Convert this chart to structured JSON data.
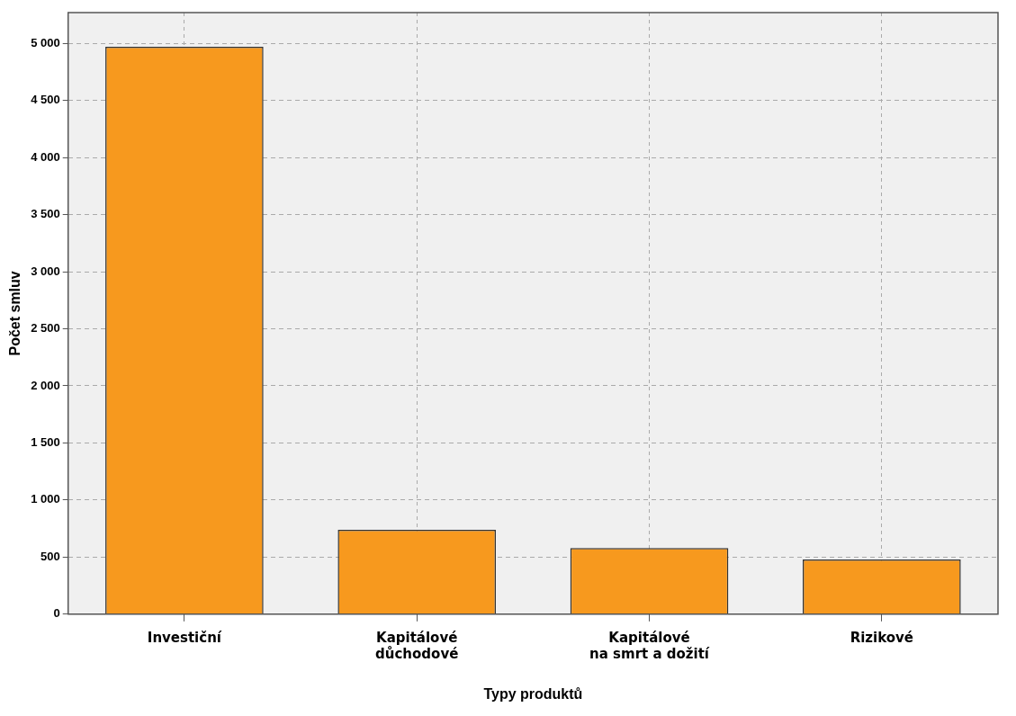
{
  "chart_data": {
    "type": "bar",
    "xlabel": "Typy produktů",
    "ylabel": "Počet smluv",
    "categories": [
      "Investiční",
      "Kapitálové\ndůchodové",
      "Kapitálové\nna smrt a dožití",
      "Rizikové"
    ],
    "values": [
      4970,
      740,
      580,
      480
    ],
    "color": "#f7991e",
    "ylim": [
      0,
      5270
    ],
    "yticks": [
      {
        "value": 0,
        "label": "0"
      },
      {
        "value": 500,
        "label": "500"
      },
      {
        "value": 1000,
        "label": "1 000"
      },
      {
        "value": 1500,
        "label": "1 500"
      },
      {
        "value": 2000,
        "label": "2 000"
      },
      {
        "value": 2500,
        "label": "2 500"
      },
      {
        "value": 3000,
        "label": "3 000"
      },
      {
        "value": 3500,
        "label": "3 500"
      },
      {
        "value": 4000,
        "label": "4 000"
      },
      {
        "value": 4500,
        "label": "4 500"
      },
      {
        "value": 5000,
        "label": "5 000"
      }
    ],
    "grid": true
  }
}
